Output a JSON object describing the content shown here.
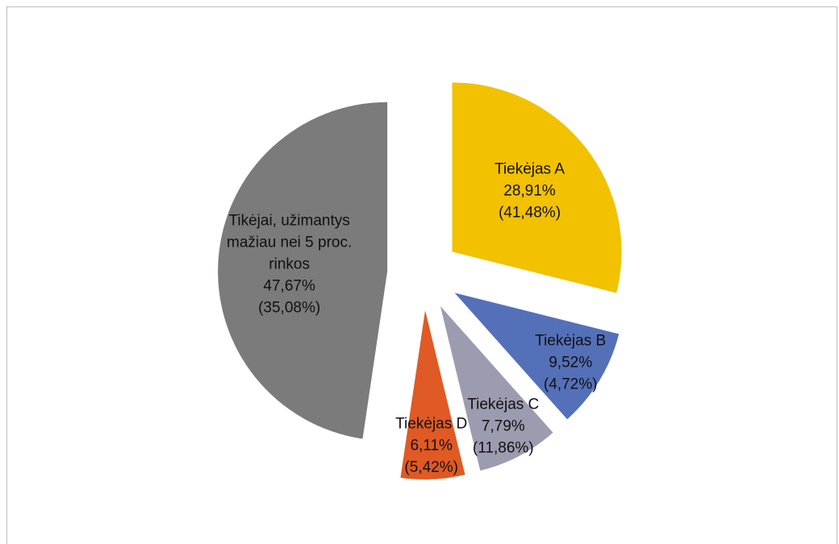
{
  "chart_data": {
    "type": "pie",
    "categories": [
      "Tiekėjas A",
      "Tiekėjas B",
      "Tiekėjas C",
      "Tiekėjas D",
      "Tikėjai, užimantys mažiau nei 5 proc. rinkos"
    ],
    "values": [
      28.91,
      9.52,
      7.79,
      6.11,
      47.67
    ],
    "value_labels": [
      "28,91%",
      "9,52%",
      "7,79%",
      "6,11%",
      "47,67%"
    ],
    "secondary_values": [
      41.48,
      4.72,
      11.86,
      5.42,
      35.08
    ],
    "secondary_value_labels": [
      "(41,48%)",
      "(4,72%)",
      "(11,86%)",
      "(5,42%)",
      "(35,08%)"
    ],
    "colors": [
      "#f2c100",
      "#5470b8",
      "#9b9caf",
      "#df5a24",
      "#7b7b7b"
    ],
    "exploded": true
  }
}
